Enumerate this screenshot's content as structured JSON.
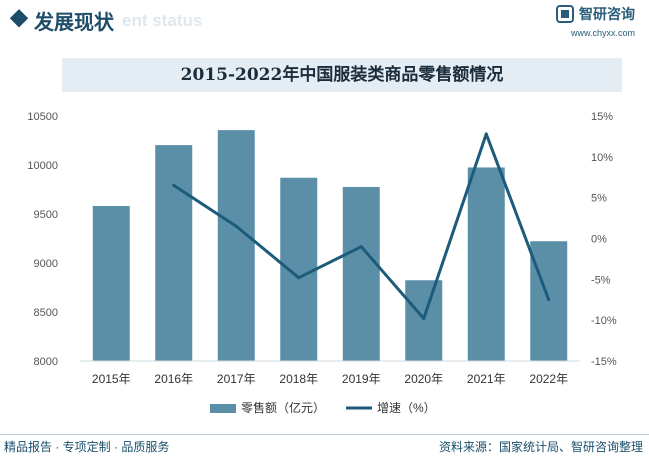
{
  "header": {
    "section_title": "发展现状",
    "section_subtitle": "ent status",
    "brand_name": "智研咨询",
    "brand_url": "www.chyxx.com"
  },
  "chart_data": {
    "type": "bar",
    "title": "2015-2022年中国服装类商品零售额情况",
    "categories": [
      "2015年",
      "2016年",
      "2017年",
      "2018年",
      "2019年",
      "2020年",
      "2021年",
      "2022年"
    ],
    "series": [
      {
        "name": "零售额（亿元）",
        "type": "bar",
        "axis": "left",
        "color": "#5b8fa8",
        "values": [
          9582,
          10203,
          10356,
          9870,
          9776,
          8824,
          9975,
          9222
        ]
      },
      {
        "name": "增速（%）",
        "type": "line",
        "axis": "right",
        "color": "#1d5b7a",
        "values": [
          null,
          6.5,
          1.5,
          -4.8,
          -1.0,
          -9.8,
          12.8,
          -7.5
        ]
      }
    ],
    "ylim": [
      8000,
      10500
    ],
    "y_ticks": [
      8000,
      8500,
      9000,
      9500,
      10000,
      10500
    ],
    "y2lim": [
      -15,
      15
    ],
    "y2_ticks": [
      "-15%",
      "-10%",
      "-5%",
      "0%",
      "5%",
      "10%",
      "15%"
    ],
    "xlabel": "",
    "ylabel": "",
    "grid": false,
    "legend_position": "bottom"
  },
  "footer": {
    "left_text": "精品报告 · 专项定制 · 品质服务",
    "right_text": "资料来源：国家统计局、智研咨询整理"
  }
}
